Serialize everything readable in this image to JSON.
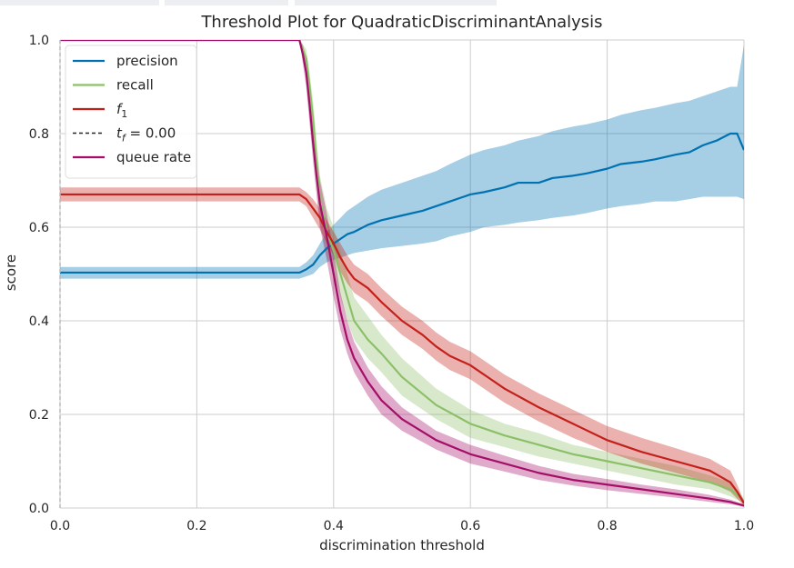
{
  "chart_data": {
    "type": "line",
    "title": "Threshold Plot for QuadraticDiscriminantAnalysis",
    "xlabel": "discrimination threshold",
    "ylabel": "score",
    "xlim": [
      0.0,
      1.0
    ],
    "ylim": [
      0.0,
      1.0
    ],
    "x_ticks": [
      "0.0",
      "0.2",
      "0.4",
      "0.6",
      "0.8",
      "1.0"
    ],
    "y_ticks": [
      "0.0",
      "0.2",
      "0.4",
      "0.6",
      "0.8",
      "1.0"
    ],
    "grid": true,
    "legend_position": "top-left",
    "threshold": 0.0,
    "series": [
      {
        "name": "precision",
        "color": "#0072b2",
        "band_color": "#0072b2",
        "x": [
          0.0,
          0.1,
          0.2,
          0.3,
          0.35,
          0.36,
          0.37,
          0.38,
          0.39,
          0.4,
          0.41,
          0.42,
          0.43,
          0.45,
          0.47,
          0.5,
          0.53,
          0.55,
          0.57,
          0.6,
          0.62,
          0.65,
          0.67,
          0.7,
          0.72,
          0.75,
          0.77,
          0.8,
          0.82,
          0.85,
          0.87,
          0.9,
          0.92,
          0.94,
          0.96,
          0.98,
          0.99,
          1.0
        ],
        "values": [
          0.503,
          0.503,
          0.503,
          0.503,
          0.503,
          0.51,
          0.52,
          0.54,
          0.555,
          0.565,
          0.575,
          0.585,
          0.59,
          0.605,
          0.615,
          0.625,
          0.635,
          0.645,
          0.655,
          0.67,
          0.675,
          0.685,
          0.695,
          0.695,
          0.705,
          0.71,
          0.715,
          0.725,
          0.735,
          0.74,
          0.745,
          0.755,
          0.76,
          0.775,
          0.785,
          0.8,
          0.8,
          0.765
        ],
        "upper": [
          0.515,
          0.515,
          0.515,
          0.515,
          0.515,
          0.525,
          0.54,
          0.565,
          0.59,
          0.605,
          0.62,
          0.635,
          0.645,
          0.665,
          0.68,
          0.695,
          0.71,
          0.72,
          0.735,
          0.755,
          0.765,
          0.775,
          0.785,
          0.795,
          0.805,
          0.815,
          0.82,
          0.83,
          0.84,
          0.85,
          0.855,
          0.865,
          0.87,
          0.88,
          0.89,
          0.9,
          0.9,
          0.99
        ],
        "lower": [
          0.49,
          0.49,
          0.49,
          0.49,
          0.49,
          0.495,
          0.5,
          0.515,
          0.525,
          0.53,
          0.535,
          0.54,
          0.545,
          0.55,
          0.555,
          0.56,
          0.565,
          0.57,
          0.58,
          0.59,
          0.6,
          0.605,
          0.61,
          0.615,
          0.62,
          0.625,
          0.63,
          0.64,
          0.645,
          0.65,
          0.655,
          0.655,
          0.66,
          0.665,
          0.665,
          0.665,
          0.665,
          0.66
        ]
      },
      {
        "name": "recall",
        "color": "#8cbf68",
        "band_color": "#8cbf68",
        "x": [
          0.0,
          0.1,
          0.2,
          0.3,
          0.35,
          0.36,
          0.365,
          0.37,
          0.375,
          0.38,
          0.39,
          0.4,
          0.41,
          0.42,
          0.43,
          0.45,
          0.47,
          0.5,
          0.55,
          0.6,
          0.65,
          0.7,
          0.75,
          0.8,
          0.85,
          0.9,
          0.95,
          0.98,
          1.0
        ],
        "values": [
          1.0,
          1.0,
          1.0,
          1.0,
          1.0,
          0.96,
          0.9,
          0.83,
          0.74,
          0.66,
          0.59,
          0.55,
          0.5,
          0.45,
          0.4,
          0.36,
          0.33,
          0.28,
          0.22,
          0.18,
          0.155,
          0.135,
          0.115,
          0.1,
          0.085,
          0.07,
          0.055,
          0.04,
          0.015
        ],
        "upper": [
          1.0,
          1.0,
          1.0,
          1.0,
          1.0,
          0.98,
          0.93,
          0.87,
          0.79,
          0.71,
          0.64,
          0.6,
          0.55,
          0.5,
          0.45,
          0.41,
          0.37,
          0.32,
          0.255,
          0.21,
          0.18,
          0.16,
          0.135,
          0.12,
          0.105,
          0.09,
          0.07,
          0.055,
          0.02
        ],
        "lower": [
          1.0,
          1.0,
          1.0,
          1.0,
          1.0,
          0.94,
          0.87,
          0.79,
          0.7,
          0.61,
          0.54,
          0.5,
          0.45,
          0.4,
          0.36,
          0.32,
          0.29,
          0.24,
          0.19,
          0.15,
          0.13,
          0.11,
          0.095,
          0.08,
          0.065,
          0.05,
          0.04,
          0.025,
          0.01
        ]
      },
      {
        "name": "f₁",
        "color": "#c4201b",
        "band_color": "#c4201b",
        "x": [
          0.0,
          0.1,
          0.2,
          0.3,
          0.35,
          0.36,
          0.37,
          0.38,
          0.39,
          0.4,
          0.41,
          0.42,
          0.43,
          0.45,
          0.47,
          0.5,
          0.53,
          0.55,
          0.57,
          0.6,
          0.63,
          0.65,
          0.7,
          0.75,
          0.8,
          0.85,
          0.9,
          0.95,
          0.98,
          0.99,
          1.0
        ],
        "values": [
          0.67,
          0.67,
          0.67,
          0.67,
          0.67,
          0.66,
          0.64,
          0.62,
          0.59,
          0.565,
          0.535,
          0.51,
          0.49,
          0.47,
          0.44,
          0.4,
          0.37,
          0.345,
          0.325,
          0.305,
          0.275,
          0.255,
          0.215,
          0.18,
          0.145,
          0.12,
          0.1,
          0.08,
          0.055,
          0.035,
          0.01
        ],
        "upper": [
          0.685,
          0.685,
          0.685,
          0.685,
          0.685,
          0.675,
          0.66,
          0.64,
          0.615,
          0.59,
          0.565,
          0.54,
          0.52,
          0.5,
          0.47,
          0.43,
          0.4,
          0.375,
          0.355,
          0.335,
          0.305,
          0.285,
          0.245,
          0.21,
          0.175,
          0.15,
          0.128,
          0.105,
          0.08,
          0.05,
          0.015
        ],
        "lower": [
          0.655,
          0.655,
          0.655,
          0.655,
          0.655,
          0.645,
          0.62,
          0.595,
          0.565,
          0.54,
          0.505,
          0.48,
          0.46,
          0.44,
          0.41,
          0.37,
          0.34,
          0.315,
          0.295,
          0.275,
          0.245,
          0.225,
          0.185,
          0.15,
          0.12,
          0.095,
          0.075,
          0.055,
          0.035,
          0.02,
          0.005
        ]
      },
      {
        "name": "queue rate",
        "color": "#a50e68",
        "band_color": "#a50e68",
        "x": [
          0.0,
          0.1,
          0.2,
          0.3,
          0.35,
          0.355,
          0.36,
          0.365,
          0.37,
          0.375,
          0.38,
          0.39,
          0.4,
          0.41,
          0.42,
          0.43,
          0.45,
          0.47,
          0.5,
          0.55,
          0.6,
          0.65,
          0.7,
          0.75,
          0.8,
          0.85,
          0.9,
          0.95,
          0.98,
          1.0
        ],
        "values": [
          1.0,
          1.0,
          1.0,
          1.0,
          1.0,
          0.97,
          0.93,
          0.86,
          0.78,
          0.71,
          0.65,
          0.58,
          0.5,
          0.42,
          0.36,
          0.32,
          0.27,
          0.23,
          0.19,
          0.145,
          0.115,
          0.095,
          0.075,
          0.06,
          0.05,
          0.04,
          0.03,
          0.02,
          0.013,
          0.005
        ],
        "upper": [
          1.0,
          1.0,
          1.0,
          1.0,
          1.0,
          0.99,
          0.96,
          0.9,
          0.82,
          0.76,
          0.7,
          0.63,
          0.55,
          0.46,
          0.4,
          0.355,
          0.3,
          0.26,
          0.215,
          0.165,
          0.135,
          0.112,
          0.09,
          0.073,
          0.062,
          0.05,
          0.04,
          0.028,
          0.018,
          0.008
        ],
        "lower": [
          1.0,
          1.0,
          1.0,
          1.0,
          1.0,
          0.95,
          0.9,
          0.82,
          0.74,
          0.67,
          0.6,
          0.53,
          0.45,
          0.38,
          0.33,
          0.29,
          0.24,
          0.2,
          0.165,
          0.125,
          0.095,
          0.078,
          0.06,
          0.048,
          0.038,
          0.03,
          0.022,
          0.013,
          0.008,
          0.003
        ]
      }
    ],
    "legend": [
      {
        "label": "precision",
        "color": "#0072b2",
        "style": "solid"
      },
      {
        "label": "recall",
        "color": "#8cbf68",
        "style": "solid"
      },
      {
        "label": "f1",
        "color": "#c4201b",
        "style": "solid"
      },
      {
        "label": "t_f = 0.00",
        "color": "#262626",
        "style": "dashed"
      },
      {
        "label": "queue rate",
        "color": "#a50e68",
        "style": "solid"
      }
    ]
  },
  "colors": {
    "plot_background": "#ffffff",
    "grid": "#cccccc",
    "text": "#262626"
  }
}
